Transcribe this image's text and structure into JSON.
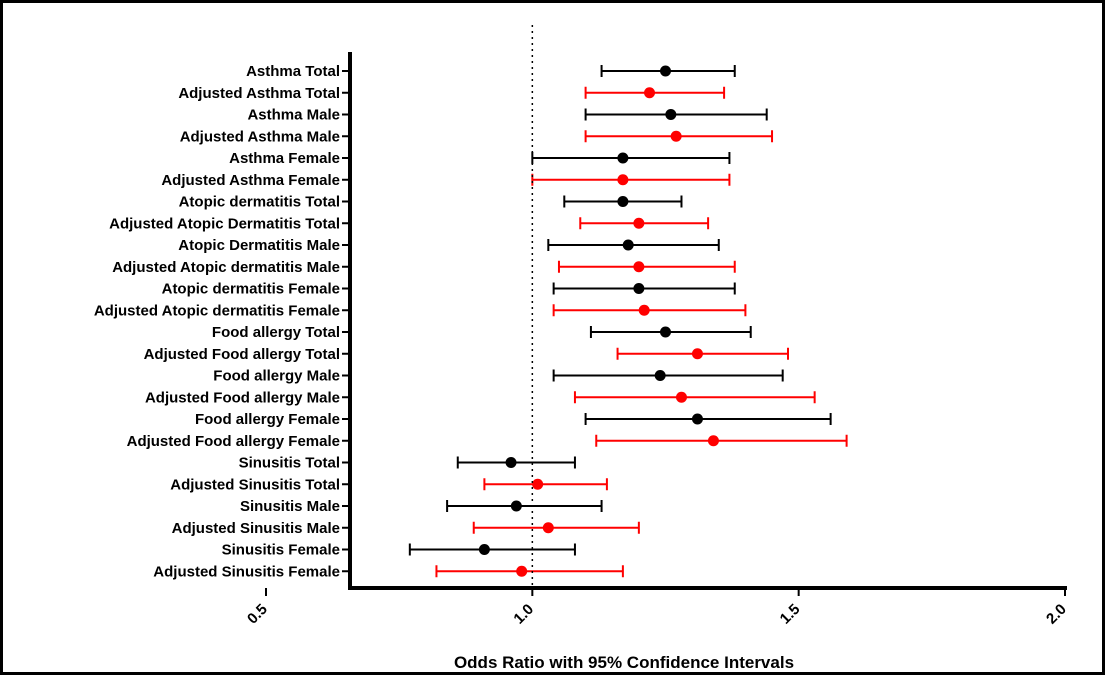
{
  "chart_data": {
    "type": "forest",
    "xlabel": "Odds Ratio with 95% Confidence Intervals",
    "xlim": [
      0.5,
      2.0
    ],
    "xticks": [
      "0.5",
      "1.0",
      "1.5",
      "2.0"
    ],
    "reference_line": 1.0,
    "colors": {
      "unadjusted": "#000000",
      "adjusted": "#ff0000"
    },
    "rows": [
      {
        "label": "Asthma Total",
        "or": 1.25,
        "lo": 1.13,
        "hi": 1.38,
        "adjusted": false
      },
      {
        "label": "Adjusted Asthma Total",
        "or": 1.22,
        "lo": 1.1,
        "hi": 1.36,
        "adjusted": true
      },
      {
        "label": "Asthma Male",
        "or": 1.26,
        "lo": 1.1,
        "hi": 1.44,
        "adjusted": false
      },
      {
        "label": "Adjusted Asthma Male",
        "or": 1.27,
        "lo": 1.1,
        "hi": 1.45,
        "adjusted": true
      },
      {
        "label": "Asthma Female",
        "or": 1.17,
        "lo": 1.0,
        "hi": 1.37,
        "adjusted": false
      },
      {
        "label": "Adjusted Asthma Female",
        "or": 1.17,
        "lo": 1.0,
        "hi": 1.37,
        "adjusted": true
      },
      {
        "label": "Atopic dermatitis Total",
        "or": 1.17,
        "lo": 1.06,
        "hi": 1.28,
        "adjusted": false
      },
      {
        "label": "Adjusted Atopic Dermatitis Total",
        "or": 1.2,
        "lo": 1.09,
        "hi": 1.33,
        "adjusted": true
      },
      {
        "label": "Atopic Dermatitis Male",
        "or": 1.18,
        "lo": 1.03,
        "hi": 1.35,
        "adjusted": false
      },
      {
        "label": "Adjusted Atopic dermatitis Male",
        "or": 1.2,
        "lo": 1.05,
        "hi": 1.38,
        "adjusted": true
      },
      {
        "label": "Atopic dermatitis Female",
        "or": 1.2,
        "lo": 1.04,
        "hi": 1.38,
        "adjusted": false
      },
      {
        "label": "Adjusted Atopic dermatitis Female",
        "or": 1.21,
        "lo": 1.04,
        "hi": 1.4,
        "adjusted": true
      },
      {
        "label": "Food allergy Total",
        "or": 1.25,
        "lo": 1.11,
        "hi": 1.41,
        "adjusted": false
      },
      {
        "label": "Adjusted Food allergy Total",
        "or": 1.31,
        "lo": 1.16,
        "hi": 1.48,
        "adjusted": true
      },
      {
        "label": "Food allergy Male",
        "or": 1.24,
        "lo": 1.04,
        "hi": 1.47,
        "adjusted": false
      },
      {
        "label": "Adjusted Food allergy Male",
        "or": 1.28,
        "lo": 1.08,
        "hi": 1.53,
        "adjusted": true
      },
      {
        "label": "Food allergy Female",
        "or": 1.31,
        "lo": 1.1,
        "hi": 1.56,
        "adjusted": false
      },
      {
        "label": "Adjusted Food allergy Female",
        "or": 1.34,
        "lo": 1.12,
        "hi": 1.59,
        "adjusted": true
      },
      {
        "label": "Sinusitis Total",
        "or": 0.96,
        "lo": 0.86,
        "hi": 1.08,
        "adjusted": false
      },
      {
        "label": "Adjusted Sinusitis Total",
        "or": 1.01,
        "lo": 0.91,
        "hi": 1.14,
        "adjusted": true
      },
      {
        "label": "Sinusitis Male",
        "or": 0.97,
        "lo": 0.84,
        "hi": 1.13,
        "adjusted": false
      },
      {
        "label": "Adjusted Sinusitis Male",
        "or": 1.03,
        "lo": 0.89,
        "hi": 1.2,
        "adjusted": true
      },
      {
        "label": "Sinusitis Female",
        "or": 0.91,
        "lo": 0.77,
        "hi": 1.08,
        "adjusted": false
      },
      {
        "label": "Adjusted Sinusitis Female",
        "or": 0.98,
        "lo": 0.82,
        "hi": 1.17,
        "adjusted": true
      }
    ]
  }
}
